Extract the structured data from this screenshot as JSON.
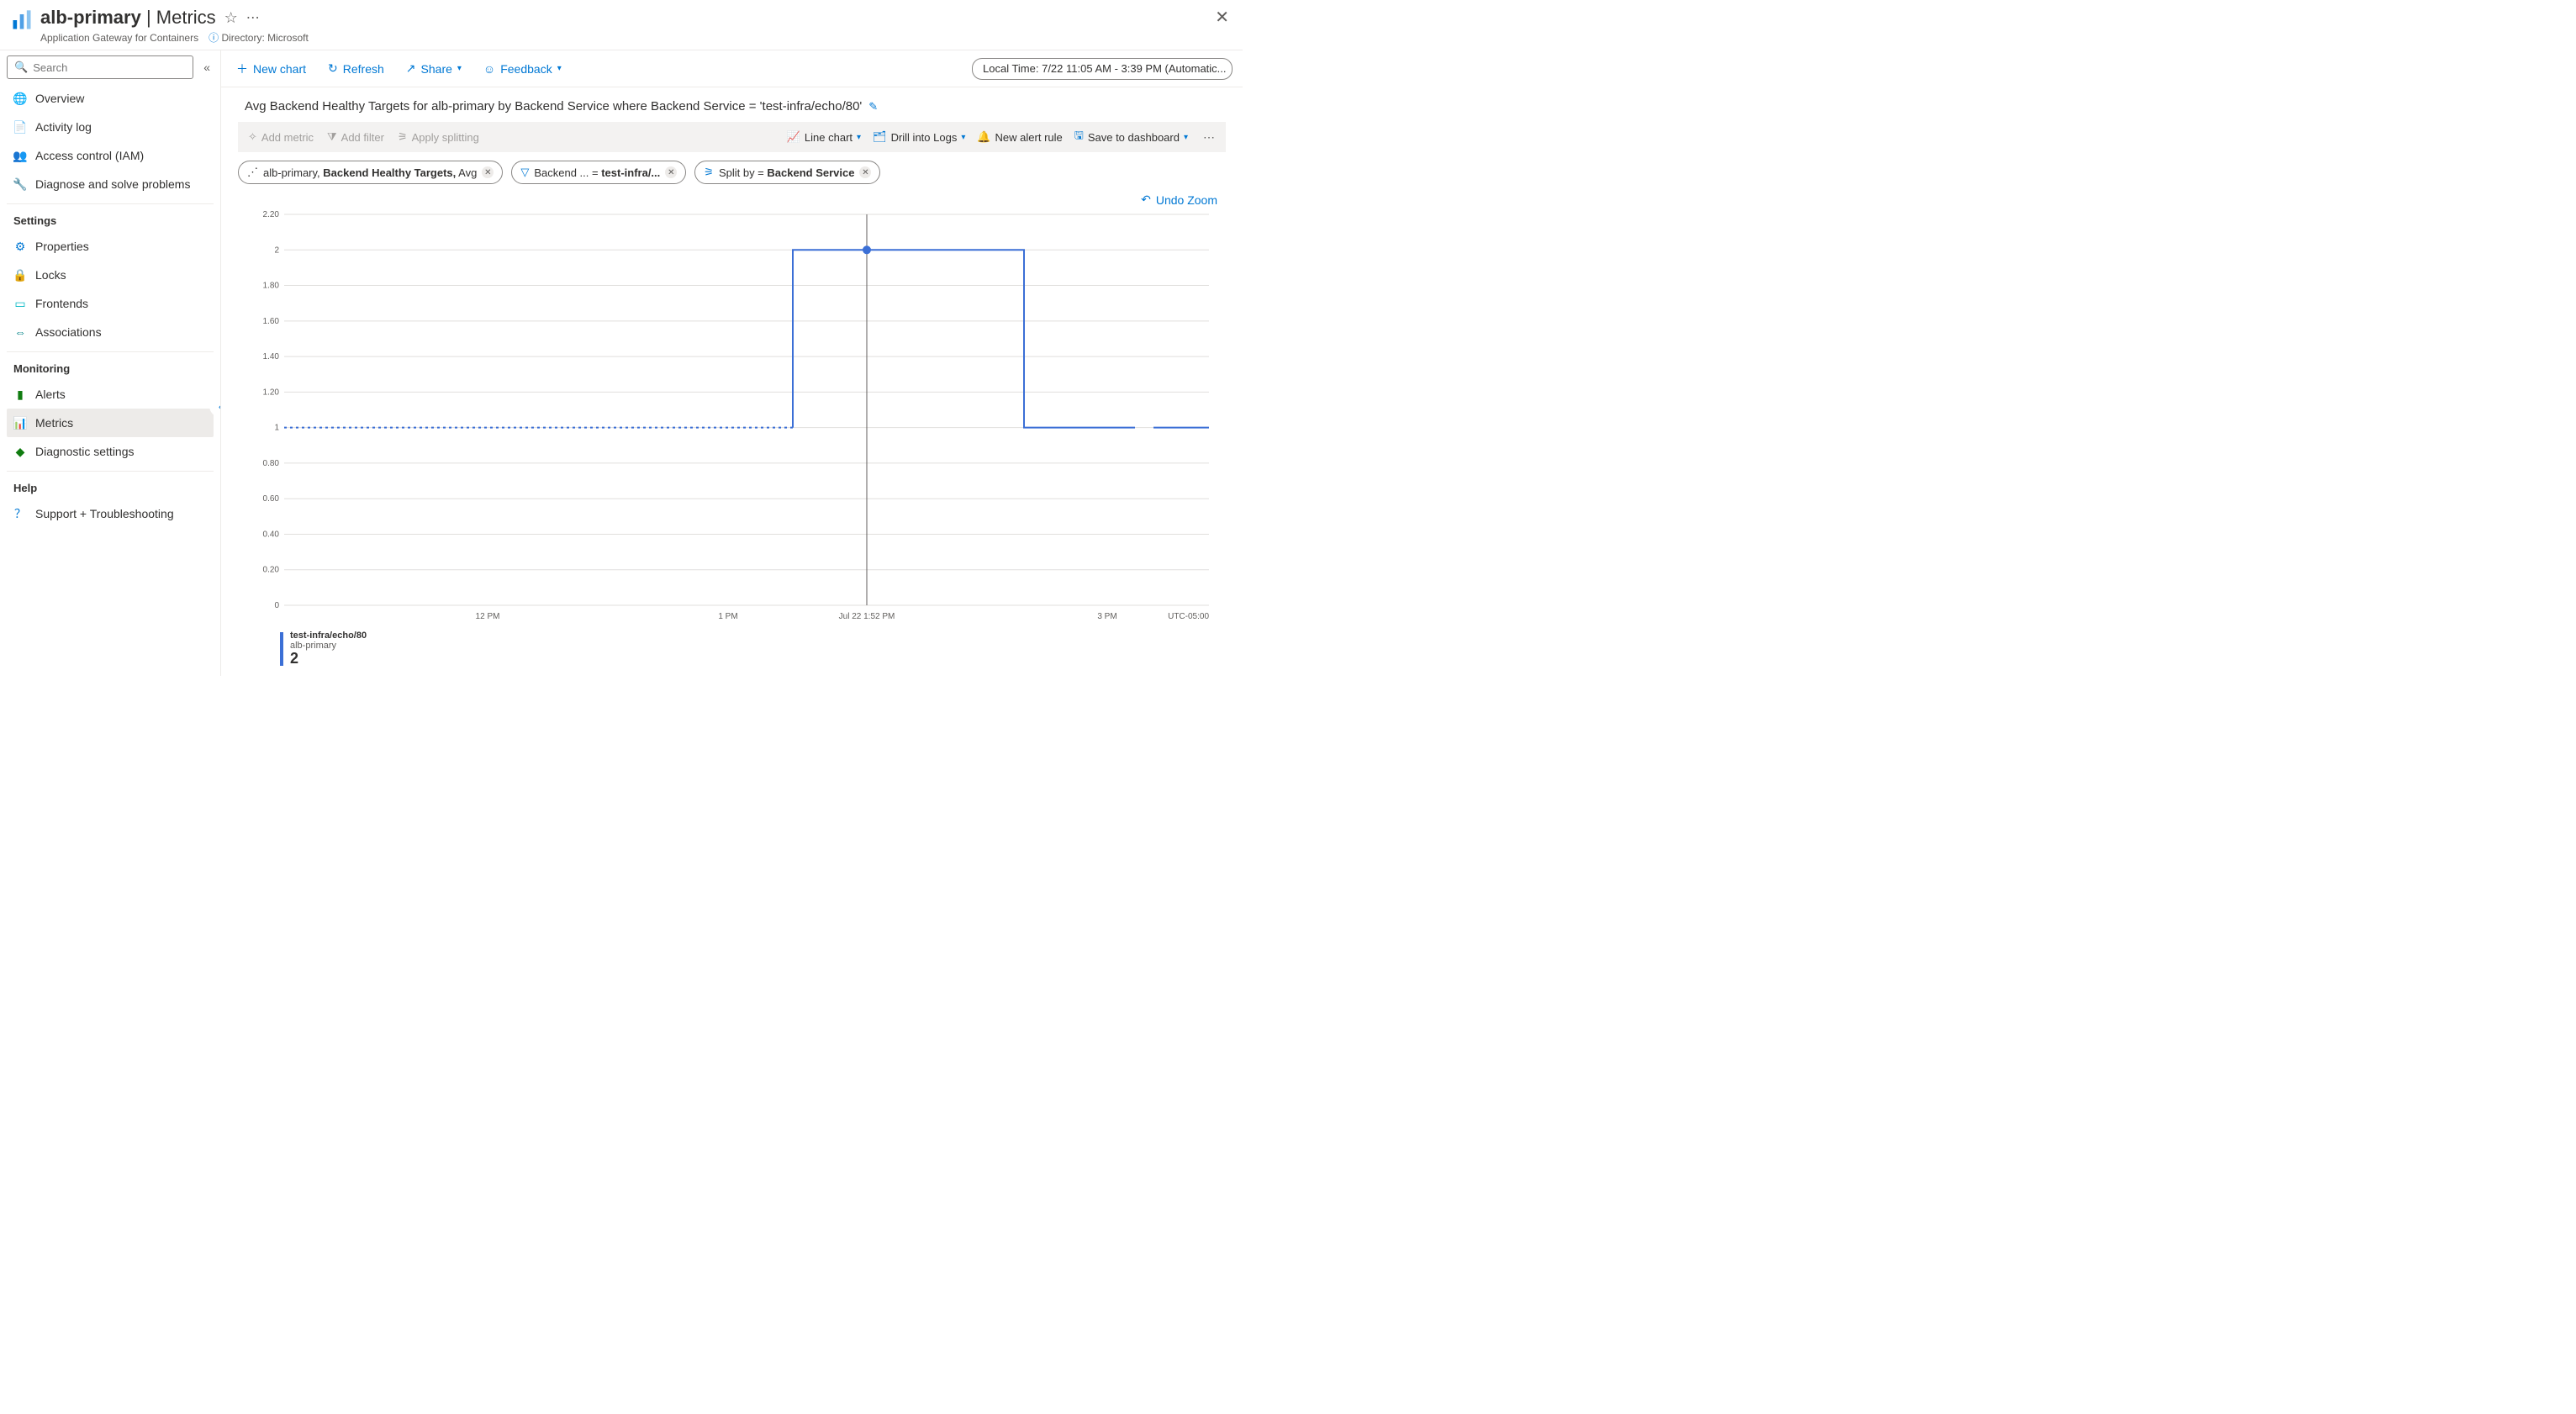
{
  "header": {
    "resource_name": "alb-primary",
    "section": " | Metrics",
    "resource_type": "Application Gateway for Containers",
    "directory_label": "Directory: Microsoft"
  },
  "sidebar": {
    "search_placeholder": "Search",
    "items": [
      {
        "label": "Overview",
        "icon": "globe",
        "color": "#0078d4"
      },
      {
        "label": "Activity log",
        "icon": "log",
        "color": "#0078d4"
      },
      {
        "label": "Access control (IAM)",
        "icon": "iam",
        "color": "#0078d4"
      },
      {
        "label": "Diagnose and solve problems",
        "icon": "wrench",
        "color": "#605e5c"
      }
    ],
    "sections": [
      {
        "title": "Settings",
        "items": [
          {
            "label": "Properties",
            "icon": "props",
            "color": "#0078d4"
          },
          {
            "label": "Locks",
            "icon": "lock",
            "color": "#0078d4"
          },
          {
            "label": "Frontends",
            "icon": "frontends",
            "color": "#00b7c3"
          },
          {
            "label": "Associations",
            "icon": "assoc",
            "color": "#038387"
          }
        ]
      },
      {
        "title": "Monitoring",
        "items": [
          {
            "label": "Alerts",
            "icon": "alerts",
            "color": "#107c10"
          },
          {
            "label": "Metrics",
            "icon": "metrics",
            "color": "#0078d4",
            "active": true
          },
          {
            "label": "Diagnostic settings",
            "icon": "diag",
            "color": "#107c10"
          }
        ]
      },
      {
        "title": "Help",
        "items": [
          {
            "label": "Support + Troubleshooting",
            "icon": "help",
            "color": "#0078d4"
          }
        ]
      }
    ]
  },
  "toolbar": {
    "new_chart": "New chart",
    "refresh": "Refresh",
    "share": "Share",
    "feedback": "Feedback",
    "time_range": "Local Time: 7/22 11:05 AM - 3:39 PM (Automatic..."
  },
  "chart": {
    "title": "Avg Backend Healthy Targets for alb-primary by Backend Service where Backend Service = 'test-infra/echo/80'",
    "toolbar": {
      "add_metric": "Add metric",
      "add_filter": "Add filter",
      "apply_splitting": "Apply splitting",
      "line_chart": "Line chart",
      "drill_logs": "Drill into Logs",
      "new_alert": "New alert rule",
      "save_dash": "Save to dashboard"
    },
    "pills": {
      "metric_resource": "alb-primary,",
      "metric_name": " Backend Healthy Targets,",
      "metric_agg": " Avg",
      "filter_key": "Backend ...",
      "filter_eq": " = ",
      "filter_val": "test-infra/...",
      "split_label": "Split by = ",
      "split_val": "Backend Service"
    },
    "undo_zoom": "Undo Zoom",
    "y_axis": {
      "min": 0,
      "max": 2.2,
      "ticks": [
        "2.20",
        "2",
        "1.80",
        "1.60",
        "1.40",
        "1.20",
        "1",
        "0.80",
        "0.60",
        "0.40",
        "0.20",
        "0"
      ]
    },
    "x_axis": {
      "ticks": [
        "12 PM",
        "1 PM",
        "Jul 22 1:52 PM",
        "3 PM"
      ],
      "tz": "UTC-05:00",
      "positions": [
        0.22,
        0.48,
        0.63,
        0.89
      ]
    },
    "series": {
      "color": "#3b6fd6",
      "points_dashed": [
        [
          0.0,
          1
        ],
        [
          0.55,
          1
        ]
      ],
      "points_solid": [
        [
          0.55,
          1
        ],
        [
          0.55,
          2
        ],
        [
          0.8,
          2
        ],
        [
          0.8,
          1
        ],
        [
          0.92,
          1
        ]
      ],
      "gap_after": 0.92,
      "tail": [
        [
          0.94,
          1
        ],
        [
          1.0,
          1
        ]
      ],
      "marker": {
        "x": 0.63,
        "y": 2
      }
    },
    "crosshair_x": 0.63,
    "legend": {
      "series": "test-infra/echo/80",
      "resource": "alb-primary",
      "value": "2"
    }
  }
}
